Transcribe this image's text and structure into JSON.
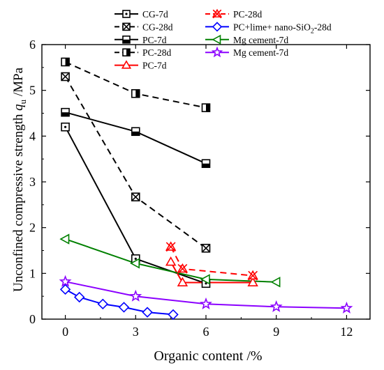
{
  "chart_data": {
    "type": "line",
    "xlabel": "Organic content /%",
    "ylabel_main": "Unconfined compressive strength ",
    "ylabel_symbol": "q",
    "ylabel_subscript": "u",
    "ylabel_unit": " /MPa",
    "xlim": [
      -1,
      13
    ],
    "ylim": [
      0,
      6
    ],
    "xticks": [
      0,
      3,
      6,
      9,
      12
    ],
    "yticks": [
      0,
      1,
      2,
      3,
      4,
      5,
      6
    ],
    "grid": false,
    "legend_position": "top-right",
    "legend_columns": [
      [
        "CG-7d",
        "CG-28d",
        "PC-7d",
        "PC-28d",
        "PC-7d"
      ],
      [
        "PC-28d",
        "PC+lime+ nano-SiO2-28d",
        "Mg cement-7d",
        "Mg cement-7d"
      ]
    ],
    "series": [
      {
        "name": "CG-7d",
        "color": "#000000",
        "line": "solid",
        "marker": "square-dot",
        "x": [
          0,
          3,
          6
        ],
        "y": [
          4.2,
          1.32,
          0.78
        ]
      },
      {
        "name": "CG-28d",
        "color": "#000000",
        "line": "dashed",
        "marker": "square-x",
        "x": [
          0,
          3,
          6
        ],
        "y": [
          5.3,
          2.67,
          1.55
        ]
      },
      {
        "name": "PC-7d",
        "color": "#000000",
        "line": "solid",
        "marker": "square-bottom-half",
        "x": [
          0,
          3,
          6
        ],
        "y": [
          4.52,
          4.1,
          3.4
        ]
      },
      {
        "name": "PC-28d",
        "color": "#000000",
        "line": "dashed",
        "marker": "square-right-half",
        "x": [
          0,
          3,
          6
        ],
        "y": [
          5.62,
          4.93,
          4.62
        ]
      },
      {
        "name": "PC-7d",
        "color": "#ff0000",
        "line": "solid",
        "marker": "triangle",
        "x": [
          4.5,
          5,
          8
        ],
        "y": [
          1.25,
          0.8,
          0.8
        ]
      },
      {
        "name": "PC-28d",
        "color": "#ff0000",
        "line": "dashed",
        "marker": "triangle-x",
        "x": [
          4.5,
          5,
          8
        ],
        "y": [
          1.58,
          1.1,
          0.95
        ]
      },
      {
        "name": "PC+lime+ nano-SiO2-28d",
        "color": "#0000ff",
        "line": "solid",
        "marker": "diamond",
        "x": [
          0,
          0.6,
          1.6,
          2.5,
          3.5,
          4.6
        ],
        "y": [
          0.65,
          0.48,
          0.33,
          0.26,
          0.15,
          0.1
        ]
      },
      {
        "name": "Mg cement-7d",
        "color": "#008000",
        "line": "solid",
        "marker": "triangle-left",
        "x": [
          0,
          3,
          6,
          9
        ],
        "y": [
          1.75,
          1.22,
          0.87,
          0.81
        ]
      },
      {
        "name": "Mg cement-7d",
        "color": "#8b00ff",
        "line": "solid",
        "marker": "star",
        "x": [
          0,
          3,
          6,
          9,
          12
        ],
        "y": [
          0.82,
          0.5,
          0.33,
          0.27,
          0.24
        ]
      }
    ]
  }
}
